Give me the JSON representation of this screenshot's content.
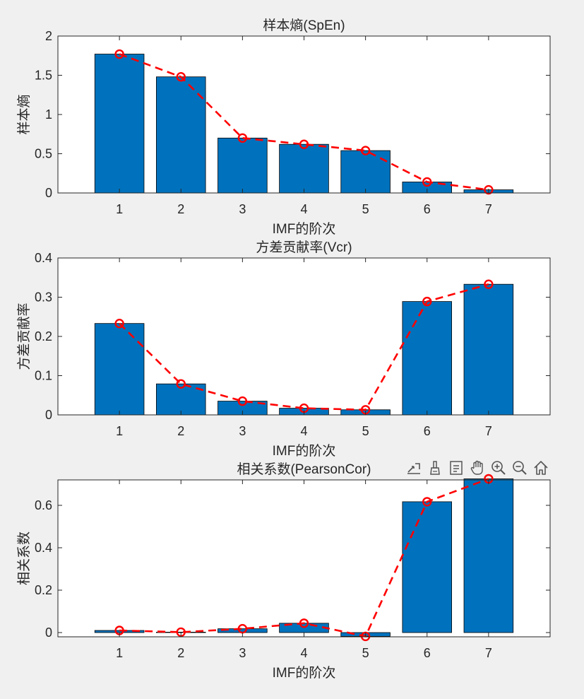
{
  "window": {
    "background": "#f0f0f0"
  },
  "colors": {
    "bar": "#0072bd",
    "line": "#ff0000",
    "axis": "#262626",
    "text": "#262626"
  },
  "toolbar": {
    "buttons": [
      {
        "name": "export-icon"
      },
      {
        "name": "brush-icon"
      },
      {
        "name": "datatip-icon"
      },
      {
        "name": "pan-hand-icon"
      },
      {
        "name": "zoom-in-icon"
      },
      {
        "name": "zoom-out-icon"
      },
      {
        "name": "home-icon"
      }
    ]
  },
  "chart_data": [
    {
      "type": "bar",
      "title": "样本熵(SpEn)",
      "xlabel": "IMF的阶次",
      "ylabel": "样本熵",
      "categories": [
        "1",
        "2",
        "3",
        "4",
        "5",
        "6",
        "7"
      ],
      "xlim": [
        0,
        8
      ],
      "ylim": [
        0,
        2
      ],
      "yticks": [
        0,
        0.5,
        1,
        1.5,
        2
      ],
      "ytick_labels": [
        "0",
        "0.5",
        "1",
        "1.5",
        "2"
      ],
      "series": [
        {
          "name": "bars",
          "kind": "bar",
          "values": [
            1.77,
            1.48,
            0.7,
            0.62,
            0.54,
            0.14,
            0.04
          ]
        },
        {
          "name": "trend",
          "kind": "line",
          "style": "dashed",
          "marker": "circle",
          "values": [
            1.77,
            1.48,
            0.7,
            0.62,
            0.54,
            0.14,
            0.04
          ]
        }
      ]
    },
    {
      "type": "bar",
      "title": "方差贡献率(Vcr)",
      "xlabel": "IMF的阶次",
      "ylabel": "方差贡献率",
      "categories": [
        "1",
        "2",
        "3",
        "4",
        "5",
        "6",
        "7"
      ],
      "xlim": [
        0,
        8
      ],
      "ylim": [
        0,
        0.4
      ],
      "yticks": [
        0,
        0.1,
        0.2,
        0.3,
        0.4
      ],
      "ytick_labels": [
        "0",
        "0.1",
        "0.2",
        "0.3",
        "0.4"
      ],
      "series": [
        {
          "name": "bars",
          "kind": "bar",
          "values": [
            0.233,
            0.079,
            0.035,
            0.017,
            0.013,
            0.289,
            0.333
          ]
        },
        {
          "name": "trend",
          "kind": "line",
          "style": "dashed",
          "marker": "circle",
          "values": [
            0.233,
            0.079,
            0.035,
            0.017,
            0.013,
            0.289,
            0.333
          ]
        }
      ]
    },
    {
      "type": "bar",
      "title": "相关系数(PearsonCor)",
      "xlabel": "IMF的阶次",
      "ylabel": "相关系数",
      "categories": [
        "1",
        "2",
        "3",
        "4",
        "5",
        "6",
        "7"
      ],
      "xlim": [
        0,
        8
      ],
      "ylim": [
        -0.02,
        0.72
      ],
      "yticks": [
        0,
        0.2,
        0.4,
        0.6
      ],
      "ytick_labels": [
        "0",
        "0.2",
        "0.4",
        "0.6"
      ],
      "series": [
        {
          "name": "bars",
          "kind": "bar",
          "values": [
            0.01,
            0.002,
            0.018,
            0.044,
            -0.018,
            0.617,
            0.725
          ]
        },
        {
          "name": "trend",
          "kind": "line",
          "style": "dashed",
          "marker": "circle",
          "values": [
            0.01,
            0.002,
            0.018,
            0.044,
            -0.018,
            0.617,
            0.725
          ]
        }
      ]
    }
  ]
}
